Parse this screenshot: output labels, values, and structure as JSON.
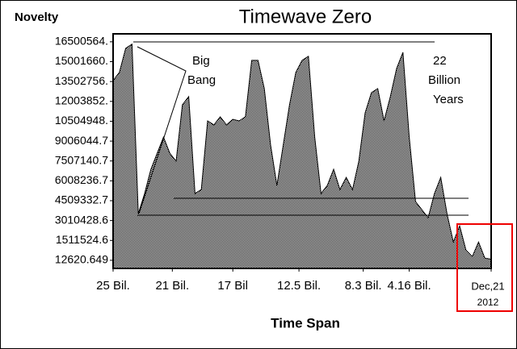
{
  "chart_data": {
    "type": "area",
    "title": "Timewave Zero",
    "y_label": "Novelty",
    "x_label": "Time Span",
    "color": "#808080",
    "x": [
      0,
      1,
      2,
      3,
      4,
      5,
      6,
      7,
      8,
      9,
      10,
      11,
      12,
      13,
      14,
      15,
      16,
      17,
      18,
      19,
      20,
      21,
      22,
      23,
      24,
      25,
      26,
      27,
      28,
      29,
      30,
      31,
      32,
      33,
      34,
      35,
      36,
      37,
      38,
      39,
      40,
      41,
      42,
      43,
      44,
      45,
      46,
      47,
      48,
      49,
      50,
      51,
      52,
      53,
      54,
      55,
      56,
      57,
      58,
      59,
      60
    ],
    "values": [
      13580000,
      14190000,
      16010000,
      16320000,
      3520000,
      5050000,
      6880000,
      8090000,
      9310000,
      8090000,
      7490000,
      11750000,
      12360000,
      5050000,
      5350000,
      10530000,
      10230000,
      10840000,
      10230000,
      10650000,
      10530000,
      10840000,
      15100000,
      15100000,
      12970000,
      8700000,
      5660000,
      8700000,
      11750000,
      14190000,
      15100000,
      15400000,
      9310000,
      5050000,
      5660000,
      6880000,
      5350000,
      6270000,
      5350000,
      7490000,
      11140000,
      12660000,
      12970000,
      10530000,
      12360000,
      14490000,
      15710000,
      9310000,
      4440000,
      3830000,
      3220000,
      5050000,
      6270000,
      3520000,
      1390000,
      2610000,
      780000,
      290000,
      1390000,
      170000,
      100000
    ],
    "xlim": [
      0,
      60
    ],
    "xticks": [
      {
        "value": 0,
        "label": "25 Bil."
      },
      {
        "value": 9.4,
        "label": "21 Bil."
      },
      {
        "value": 19,
        "label": "17 Bil"
      },
      {
        "value": 29.5,
        "label": "12.5 Bil."
      },
      {
        "value": 39.7,
        "label": "8.3 Bil."
      },
      {
        "value": 47,
        "label": "4.16 Bil."
      },
      {
        "value": 60,
        "label": "Dec,21"
      }
    ],
    "ylim": [
      -600000,
      17100000
    ],
    "yticks": [
      {
        "value": 16500564,
        "label": "16500564."
      },
      {
        "value": 15001660,
        "label": "15001660."
      },
      {
        "value": 13502756,
        "label": "13502756."
      },
      {
        "value": 12003852,
        "label": "12003852."
      },
      {
        "value": 10504948,
        "label": "10504948."
      },
      9006044.7,
      7507140.7,
      6008236.7,
      4509332.7,
      3010428.6,
      1511524.6,
      12620.649
    ],
    "annotations": [
      "Big",
      "Bang",
      "22",
      "Billion",
      "Years",
      "2012"
    ]
  }
}
